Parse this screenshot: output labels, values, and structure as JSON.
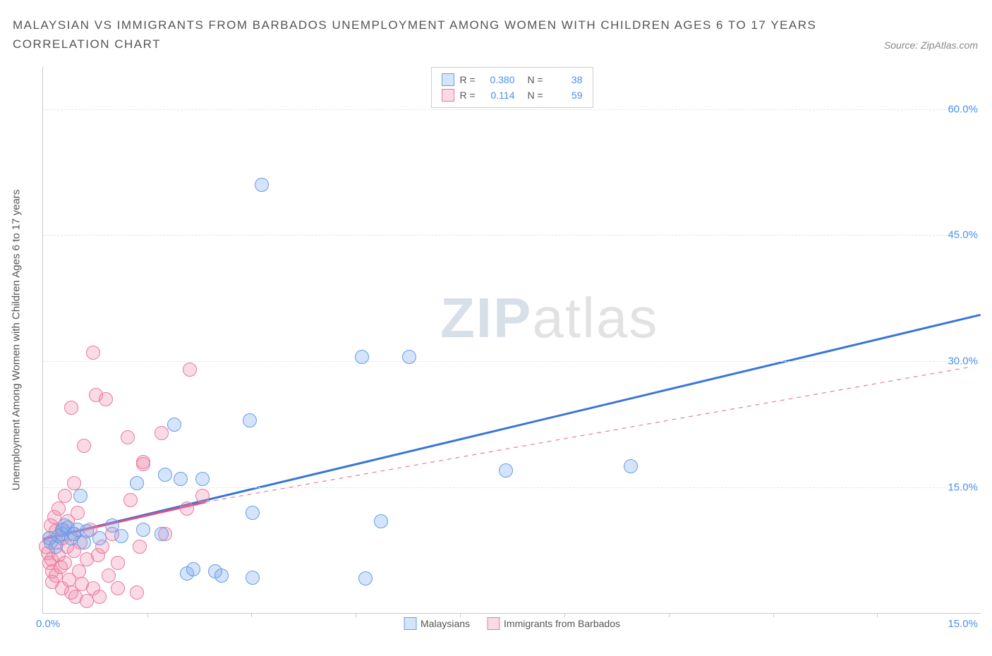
{
  "title_line1": "MALAYSIAN VS IMMIGRANTS FROM BARBADOS UNEMPLOYMENT AMONG WOMEN WITH CHILDREN AGES 6 TO 17 YEARS",
  "title_line2": "CORRELATION CHART",
  "source_text": "Source: ZipAtlas.com",
  "y_axis_title": "Unemployment Among Women with Children Ages 6 to 17 years",
  "watermark_a": "ZIP",
  "watermark_b": "atlas",
  "chart": {
    "type": "scatter",
    "xlim": [
      0,
      15
    ],
    "ylim": [
      0,
      65
    ],
    "x_origin_label": "0.0%",
    "x_max_label": "15.0%",
    "x_tick_positions": [
      1.67,
      3.33,
      5.0,
      6.67,
      8.33,
      10.0,
      11.67,
      13.33
    ],
    "y_ticks": [
      {
        "v": 15,
        "label": "15.0%"
      },
      {
        "v": 30,
        "label": "30.0%"
      },
      {
        "v": 45,
        "label": "45.0%"
      },
      {
        "v": 60,
        "label": "60.0%"
      }
    ],
    "background_color": "#ffffff",
    "grid_color": "#e5e5e5"
  },
  "series": {
    "malaysians": {
      "label": "Malaysians",
      "fill": "rgba(120,170,240,0.32)",
      "stroke": "#6a9be8",
      "marker_radius": 10,
      "trend": {
        "x1": 0,
        "y1": 8.8,
        "x2": 15,
        "y2": 35.5,
        "color": "#3a75d8",
        "width": 3,
        "dash": "none"
      },
      "points": [
        [
          0.1,
          9.0
        ],
        [
          0.12,
          8.5
        ],
        [
          0.2,
          8.0
        ],
        [
          0.25,
          9.2
        ],
        [
          0.3,
          10.0
        ],
        [
          0.3,
          9.5
        ],
        [
          0.35,
          10.5
        ],
        [
          0.4,
          10.2
        ],
        [
          0.45,
          9.0
        ],
        [
          0.5,
          9.5
        ],
        [
          0.55,
          10.0
        ],
        [
          0.6,
          14.0
        ],
        [
          0.65,
          8.5
        ],
        [
          0.7,
          9.8
        ],
        [
          0.9,
          9.0
        ],
        [
          1.1,
          10.5
        ],
        [
          1.25,
          9.2
        ],
        [
          1.5,
          15.5
        ],
        [
          1.6,
          10.0
        ],
        [
          1.9,
          9.5
        ],
        [
          1.95,
          16.5
        ],
        [
          2.1,
          22.5
        ],
        [
          2.2,
          16.0
        ],
        [
          2.3,
          4.8
        ],
        [
          2.4,
          5.3
        ],
        [
          2.55,
          16.0
        ],
        [
          2.75,
          5.0
        ],
        [
          2.85,
          4.5
        ],
        [
          3.3,
          23.0
        ],
        [
          3.35,
          4.3
        ],
        [
          3.35,
          12.0
        ],
        [
          3.5,
          51.0
        ],
        [
          5.1,
          30.5
        ],
        [
          5.15,
          4.2
        ],
        [
          5.4,
          11.0
        ],
        [
          5.85,
          30.5
        ],
        [
          7.4,
          17.0
        ],
        [
          9.4,
          17.5
        ]
      ]
    },
    "barbados": {
      "label": "Immigrants from Barbados",
      "fill": "rgba(240,140,170,0.32)",
      "stroke": "#e87a9e",
      "marker_radius": 10,
      "trend_solid": {
        "x1": 0,
        "y1": 8.8,
        "x2": 2.6,
        "y2": 13.2,
        "color": "#e05080",
        "width": 3
      },
      "trend_dash": {
        "x1": 2.6,
        "y1": 13.2,
        "x2": 15,
        "y2": 29.5,
        "color": "#e87a9e",
        "width": 1.2
      },
      "points": [
        [
          0.05,
          8.0
        ],
        [
          0.08,
          7.2
        ],
        [
          0.1,
          6.0
        ],
        [
          0.1,
          9.0
        ],
        [
          0.12,
          10.5
        ],
        [
          0.14,
          6.5
        ],
        [
          0.15,
          5.0
        ],
        [
          0.15,
          3.8
        ],
        [
          0.18,
          11.5
        ],
        [
          0.2,
          9.8
        ],
        [
          0.2,
          4.5
        ],
        [
          0.22,
          8.5
        ],
        [
          0.25,
          12.5
        ],
        [
          0.25,
          7.0
        ],
        [
          0.28,
          5.5
        ],
        [
          0.3,
          9.0
        ],
        [
          0.3,
          3.0
        ],
        [
          0.32,
          10.0
        ],
        [
          0.35,
          6.0
        ],
        [
          0.35,
          14.0
        ],
        [
          0.38,
          8.0
        ],
        [
          0.4,
          11.0
        ],
        [
          0.42,
          4.0
        ],
        [
          0.45,
          24.5
        ],
        [
          0.45,
          2.5
        ],
        [
          0.48,
          9.5
        ],
        [
          0.5,
          15.5
        ],
        [
          0.5,
          7.5
        ],
        [
          0.52,
          2.0
        ],
        [
          0.55,
          12.0
        ],
        [
          0.58,
          5.0
        ],
        [
          0.6,
          8.5
        ],
        [
          0.62,
          3.5
        ],
        [
          0.65,
          20.0
        ],
        [
          0.7,
          1.5
        ],
        [
          0.7,
          6.5
        ],
        [
          0.75,
          10.0
        ],
        [
          0.8,
          31.0
        ],
        [
          0.8,
          3.0
        ],
        [
          0.85,
          26.0
        ],
        [
          0.88,
          7.0
        ],
        [
          0.9,
          2.0
        ],
        [
          0.95,
          8.0
        ],
        [
          1.0,
          25.5
        ],
        [
          1.05,
          4.5
        ],
        [
          1.1,
          9.5
        ],
        [
          1.2,
          6.0
        ],
        [
          1.2,
          3.0
        ],
        [
          1.35,
          21.0
        ],
        [
          1.4,
          13.5
        ],
        [
          1.5,
          2.5
        ],
        [
          1.55,
          8.0
        ],
        [
          1.6,
          18.0
        ],
        [
          1.6,
          17.8
        ],
        [
          1.9,
          21.5
        ],
        [
          1.95,
          9.5
        ],
        [
          2.3,
          12.5
        ],
        [
          2.35,
          29.0
        ],
        [
          2.55,
          14.0
        ]
      ]
    }
  },
  "stats": {
    "rows": [
      {
        "swatch_fill": "rgba(120,170,240,0.32)",
        "swatch_stroke": "#6a9be8",
        "r_label": "R =",
        "r": "0.380",
        "n_label": "N =",
        "n": "38"
      },
      {
        "swatch_fill": "rgba(240,140,170,0.32)",
        "swatch_stroke": "#e87a9e",
        "r_label": "R =",
        "r": "0.114",
        "n_label": "N =",
        "n": "59"
      }
    ]
  },
  "legend": {
    "items": [
      {
        "swatch_fill": "rgba(120,170,240,0.32)",
        "swatch_stroke": "#6a9be8",
        "label": "Malaysians"
      },
      {
        "swatch_fill": "rgba(240,140,170,0.32)",
        "swatch_stroke": "#e87a9e",
        "label": "Immigrants from Barbados"
      }
    ]
  }
}
